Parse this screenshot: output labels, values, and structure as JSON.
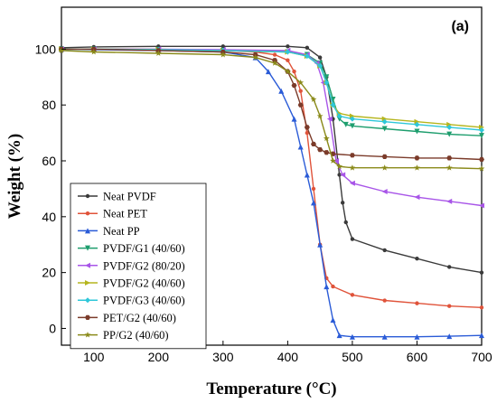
{
  "chart_data": {
    "type": "line",
    "panel_label": "(a)",
    "xlabel": "Temperature (°C)",
    "ylabel": "Weight (%)",
    "xlim": [
      50,
      700
    ],
    "ylim": [
      -6,
      115
    ],
    "xticks": [
      100,
      200,
      300,
      400,
      500,
      600,
      700
    ],
    "yticks": [
      0,
      20,
      40,
      60,
      80,
      100
    ],
    "grid": false,
    "legend_position": "lower-left",
    "series": [
      {
        "name": "Neat PVDF",
        "color": "#3a3a3a",
        "marker": "circle",
        "points": [
          [
            50,
            100.5
          ],
          [
            100,
            100.8
          ],
          [
            200,
            101
          ],
          [
            300,
            101
          ],
          [
            400,
            101
          ],
          [
            430,
            100.5
          ],
          [
            450,
            97
          ],
          [
            460,
            90
          ],
          [
            470,
            75
          ],
          [
            480,
            55
          ],
          [
            485,
            45
          ],
          [
            490,
            38
          ],
          [
            500,
            32
          ],
          [
            550,
            28
          ],
          [
            600,
            25
          ],
          [
            650,
            22
          ],
          [
            700,
            20
          ]
        ]
      },
      {
        "name": "Neat PET",
        "color": "#e0533a",
        "marker": "circle",
        "points": [
          [
            50,
            100
          ],
          [
            100,
            100
          ],
          [
            200,
            100
          ],
          [
            300,
            99.5
          ],
          [
            350,
            99
          ],
          [
            380,
            98
          ],
          [
            400,
            96
          ],
          [
            410,
            92
          ],
          [
            420,
            85
          ],
          [
            430,
            70
          ],
          [
            440,
            50
          ],
          [
            450,
            30
          ],
          [
            460,
            18
          ],
          [
            470,
            15
          ],
          [
            500,
            12
          ],
          [
            550,
            10
          ],
          [
            600,
            9
          ],
          [
            650,
            8
          ],
          [
            700,
            7.5
          ]
        ]
      },
      {
        "name": "Neat PP",
        "color": "#2a5bd7",
        "marker": "triangle",
        "points": [
          [
            50,
            100
          ],
          [
            100,
            99.8
          ],
          [
            200,
            99.5
          ],
          [
            300,
            99
          ],
          [
            350,
            97
          ],
          [
            370,
            92
          ],
          [
            390,
            85
          ],
          [
            410,
            75
          ],
          [
            420,
            65
          ],
          [
            430,
            55
          ],
          [
            440,
            45
          ],
          [
            450,
            30
          ],
          [
            460,
            15
          ],
          [
            470,
            3
          ],
          [
            480,
            -2.5
          ],
          [
            500,
            -3
          ],
          [
            550,
            -3
          ],
          [
            600,
            -3
          ],
          [
            650,
            -2.8
          ],
          [
            700,
            -2.5
          ]
        ]
      },
      {
        "name": "PVDF/G1 (40/60)",
        "color": "#1e9e6e",
        "marker": "down-triangle",
        "points": [
          [
            50,
            100
          ],
          [
            100,
            100
          ],
          [
            200,
            99.8
          ],
          [
            300,
            99.5
          ],
          [
            400,
            99
          ],
          [
            430,
            98
          ],
          [
            450,
            95
          ],
          [
            460,
            90
          ],
          [
            470,
            82
          ],
          [
            480,
            75
          ],
          [
            490,
            73
          ],
          [
            500,
            72.5
          ],
          [
            550,
            71.5
          ],
          [
            600,
            70.5
          ],
          [
            650,
            69.5
          ],
          [
            700,
            69
          ]
        ]
      },
      {
        "name": "PVDF/G2 (80/20)",
        "color": "#a855e8",
        "marker": "left-triangle",
        "points": [
          [
            50,
            100
          ],
          [
            100,
            100
          ],
          [
            200,
            100
          ],
          [
            300,
            99.8
          ],
          [
            400,
            99.5
          ],
          [
            430,
            98
          ],
          [
            445,
            95
          ],
          [
            455,
            88
          ],
          [
            465,
            75
          ],
          [
            475,
            60
          ],
          [
            485,
            55
          ],
          [
            500,
            52
          ],
          [
            550,
            49
          ],
          [
            600,
            47
          ],
          [
            650,
            45.5
          ],
          [
            700,
            44
          ]
        ]
      },
      {
        "name": "PVDF/G2 (40/60)",
        "color": "#b5b51e",
        "marker": "right-triangle",
        "points": [
          [
            50,
            100
          ],
          [
            100,
            100
          ],
          [
            200,
            99.8
          ],
          [
            300,
            99.5
          ],
          [
            400,
            99
          ],
          [
            430,
            97.5
          ],
          [
            450,
            94
          ],
          [
            460,
            88
          ],
          [
            470,
            80
          ],
          [
            480,
            77
          ],
          [
            500,
            76
          ],
          [
            550,
            75
          ],
          [
            600,
            74
          ],
          [
            650,
            73
          ],
          [
            700,
            72
          ]
        ]
      },
      {
        "name": "PVDF/G3 (40/60)",
        "color": "#2ec7d9",
        "marker": "diamond",
        "points": [
          [
            50,
            100
          ],
          [
            100,
            100
          ],
          [
            200,
            99.8
          ],
          [
            300,
            99.5
          ],
          [
            400,
            99
          ],
          [
            430,
            97.5
          ],
          [
            450,
            94
          ],
          [
            460,
            88
          ],
          [
            470,
            80
          ],
          [
            480,
            76
          ],
          [
            500,
            75
          ],
          [
            550,
            74
          ],
          [
            600,
            73
          ],
          [
            650,
            72
          ],
          [
            700,
            71
          ]
        ]
      },
      {
        "name": "PET/G2 (40/60)",
        "color": "#7b3b2a",
        "marker": "hexagon",
        "points": [
          [
            50,
            100
          ],
          [
            100,
            100
          ],
          [
            200,
            99.5
          ],
          [
            300,
            99
          ],
          [
            350,
            98
          ],
          [
            380,
            96
          ],
          [
            400,
            92
          ],
          [
            410,
            87
          ],
          [
            420,
            80
          ],
          [
            430,
            72
          ],
          [
            440,
            66
          ],
          [
            450,
            64
          ],
          [
            460,
            63
          ],
          [
            470,
            62.5
          ],
          [
            500,
            62
          ],
          [
            550,
            61.5
          ],
          [
            600,
            61
          ],
          [
            650,
            61
          ],
          [
            700,
            60.5
          ]
        ]
      },
      {
        "name": "PP/G2 (40/60)",
        "color": "#8a8a1a",
        "marker": "star",
        "points": [
          [
            50,
            99.5
          ],
          [
            100,
            99
          ],
          [
            200,
            98.5
          ],
          [
            300,
            98
          ],
          [
            350,
            97
          ],
          [
            380,
            95
          ],
          [
            400,
            92
          ],
          [
            420,
            88
          ],
          [
            440,
            82
          ],
          [
            450,
            76
          ],
          [
            460,
            68
          ],
          [
            470,
            60
          ],
          [
            480,
            58
          ],
          [
            500,
            57.5
          ],
          [
            550,
            57.5
          ],
          [
            600,
            57.5
          ],
          [
            650,
            57.5
          ],
          [
            700,
            57.2
          ]
        ]
      }
    ]
  }
}
